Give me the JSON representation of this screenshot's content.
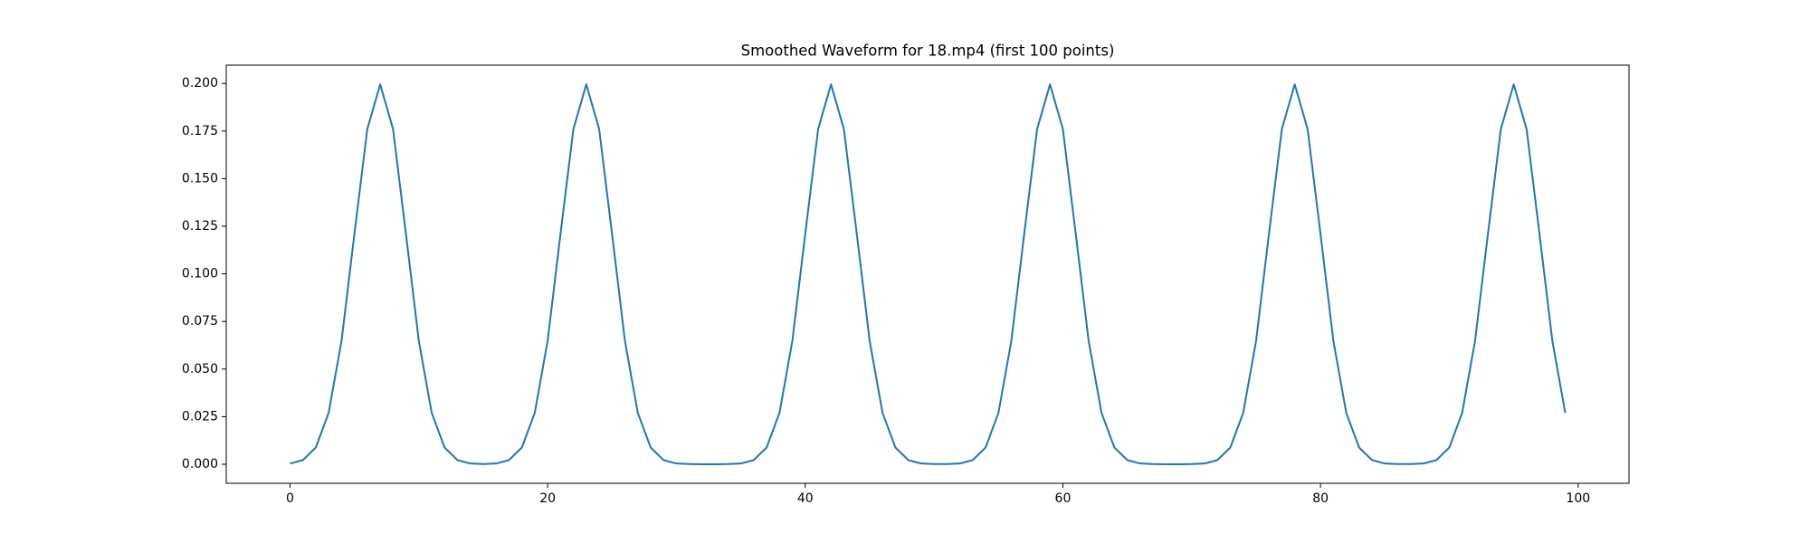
{
  "chart_data": {
    "type": "line",
    "title": "Smoothed Waveform for 18.mp4 (first 100 points)",
    "x": [
      0,
      1,
      2,
      3,
      4,
      5,
      6,
      7,
      8,
      9,
      10,
      11,
      12,
      13,
      14,
      15,
      16,
      17,
      18,
      19,
      20,
      21,
      22,
      23,
      24,
      25,
      26,
      27,
      28,
      29,
      30,
      31,
      32,
      33,
      34,
      35,
      36,
      37,
      38,
      39,
      40,
      41,
      42,
      43,
      44,
      45,
      46,
      47,
      48,
      49,
      50,
      51,
      52,
      53,
      54,
      55,
      56,
      57,
      58,
      59,
      60,
      61,
      62,
      63,
      64,
      65,
      66,
      67,
      68,
      69,
      70,
      71,
      72,
      73,
      74,
      75,
      76,
      77,
      78,
      79,
      80,
      81,
      82,
      83,
      84,
      85,
      86,
      87,
      88,
      89,
      90,
      91,
      92,
      93,
      94,
      95,
      96,
      97,
      98,
      99
    ],
    "series": [
      {
        "name": "Smoothed waveform",
        "color": "#1f77b4",
        "values": [
          0.0004,
          0.0022,
          0.0088,
          0.027,
          0.0648,
          0.121,
          0.176,
          0.1995,
          0.176,
          0.121,
          0.0648,
          0.027,
          0.0088,
          0.0022,
          0.0004,
          0.0001,
          0.0004,
          0.0022,
          0.0088,
          0.027,
          0.0648,
          0.121,
          0.176,
          0.1995,
          0.176,
          0.121,
          0.0648,
          0.027,
          0.0088,
          0.0022,
          0.0004,
          0.0001,
          0,
          0,
          0.0001,
          0.0004,
          0.0022,
          0.0088,
          0.027,
          0.0648,
          0.121,
          0.176,
          0.1995,
          0.176,
          0.121,
          0.0648,
          0.027,
          0.0088,
          0.0022,
          0.0004,
          0.0001,
          0.0001,
          0.0004,
          0.0022,
          0.0088,
          0.027,
          0.0648,
          0.121,
          0.176,
          0.1995,
          0.176,
          0.121,
          0.0648,
          0.027,
          0.0088,
          0.0022,
          0.0004,
          0.0001,
          0,
          0,
          0.0001,
          0.0004,
          0.0022,
          0.0088,
          0.027,
          0.0648,
          0.121,
          0.176,
          0.1995,
          0.176,
          0.121,
          0.0648,
          0.027,
          0.0088,
          0.0022,
          0.0004,
          0.0001,
          0.0001,
          0.0004,
          0.0022,
          0.0088,
          0.027,
          0.0648,
          0.121,
          0.176,
          0.1995,
          0.176,
          0.121,
          0.0648,
          0.027
        ]
      }
    ],
    "xlim": [
      -4.95,
      103.95
    ],
    "xticks": [
      0,
      20,
      40,
      60,
      80,
      100
    ],
    "ylim": [
      -0.00998,
      0.2096
    ],
    "yticks": [
      {
        "value": 0,
        "label": "0.000"
      },
      {
        "value": 0.025,
        "label": "0.025"
      },
      {
        "value": 0.05,
        "label": "0.050"
      },
      {
        "value": 0.075,
        "label": "0.075"
      },
      {
        "value": 0.1,
        "label": "0.100"
      },
      {
        "value": 0.125,
        "label": "0.125"
      },
      {
        "value": 0.15,
        "label": "0.150"
      },
      {
        "value": 0.175,
        "label": "0.175"
      },
      {
        "value": 0.2,
        "label": "0.200"
      }
    ],
    "grid": false
  }
}
